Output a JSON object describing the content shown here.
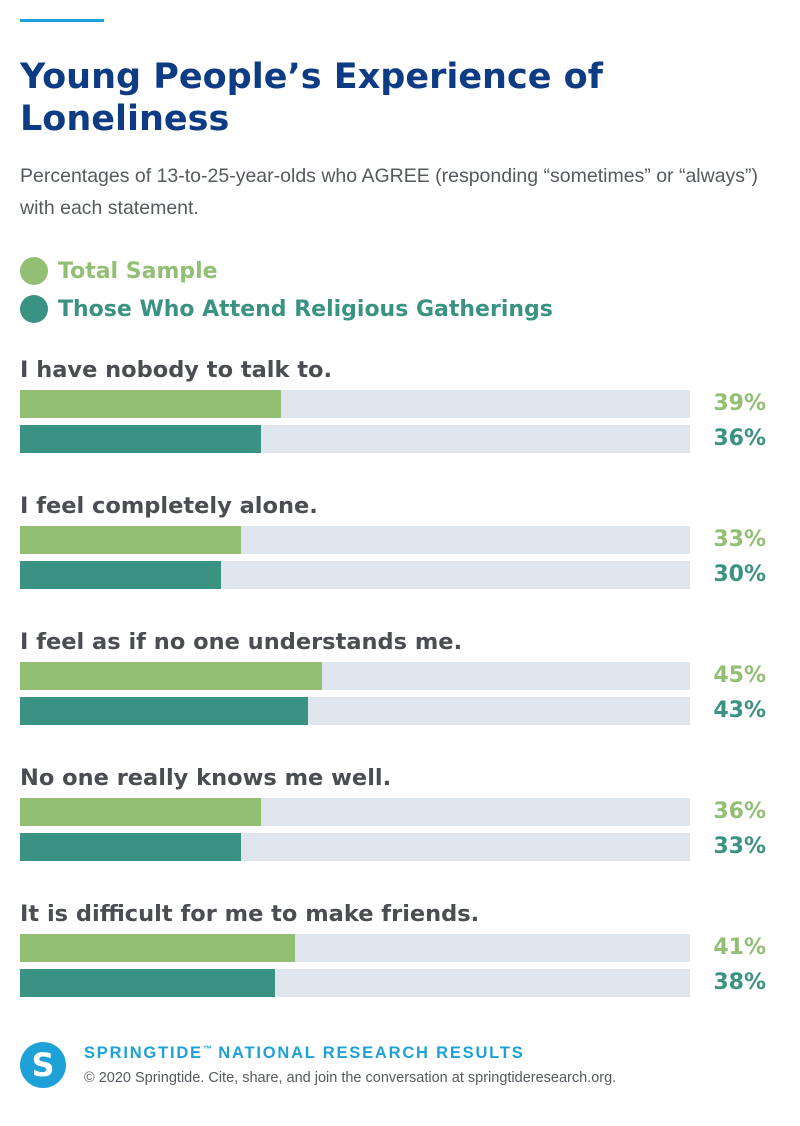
{
  "title": "Young People’s Experience of Loneliness",
  "subtitle": "Percentages of 13-to-25-year-olds who AGREE (responding “sometimes” or “always”) with each statement.",
  "colors": {
    "total": "#93bf74",
    "religious": "#3a9283",
    "track": "#dfe5ec",
    "title": "#0d3b84",
    "accent": "#1ea1d6"
  },
  "chart_data": {
    "type": "bar",
    "orientation": "horizontal",
    "title": "Young People’s Experience of Loneliness",
    "subtitle": "Percentages of 13-to-25-year-olds who AGREE (responding “sometimes” or “always”) with each statement.",
    "xlim": [
      0,
      100
    ],
    "grid": false,
    "legend_position": "top-left",
    "categories": [
      "I have nobody to talk to.",
      "I feel completely alone.",
      "I feel as if no one understands me.",
      "No one really knows me well.",
      "It is difficult for me to make friends."
    ],
    "series": [
      {
        "name": "Total Sample",
        "values": [
          39,
          33,
          45,
          36,
          41
        ],
        "labels": [
          "39%",
          "33%",
          "45%",
          "36%",
          "41%"
        ]
      },
      {
        "name": "Those Who Attend Religious Gatherings",
        "values": [
          36,
          30,
          43,
          33,
          38
        ],
        "labels": [
          "36%",
          "30%",
          "43%",
          "33%",
          "38%"
        ]
      }
    ]
  },
  "footer": {
    "brand": "SPRINGTIDE",
    "trademark": "™",
    "brand_suffix": "NATIONAL RESEARCH RESULTS",
    "copyright": "© 2020 Springtide. Cite, share, and join the conversation at springtideresearch.org.",
    "logo_letter": "S"
  }
}
